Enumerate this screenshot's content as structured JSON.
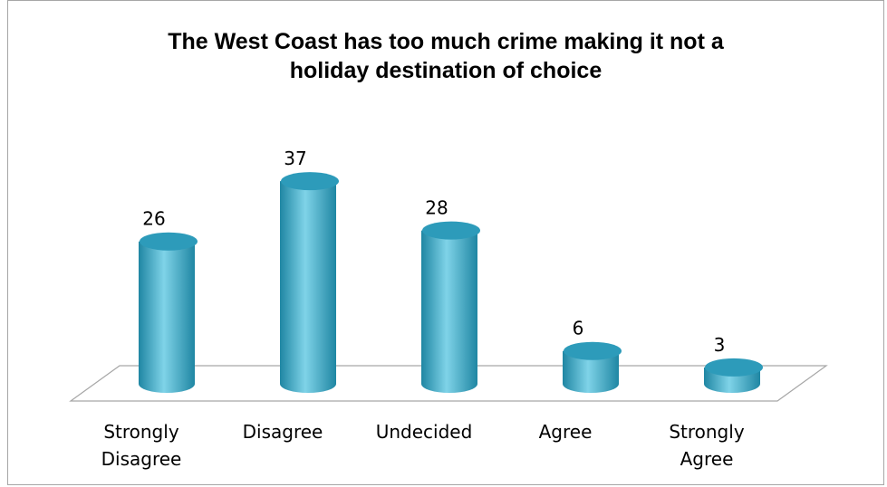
{
  "chart_data": {
    "type": "bar",
    "title_lines": [
      "The West Coast has too much crime making it not a",
      "holiday destination of choice"
    ],
    "categories": [
      [
        "Strongly",
        "Disagree"
      ],
      [
        "Disagree"
      ],
      [
        "Undecided"
      ],
      [
        "Agree"
      ],
      [
        "Strongly",
        "Agree"
      ]
    ],
    "values": [
      26,
      37,
      28,
      6,
      3
    ],
    "ylim": [
      0,
      40
    ],
    "bar_shape": "3d-cylinder",
    "grid": false,
    "legend": "none",
    "colors": {
      "bar_front": "#4bb8d3",
      "bar_light": "#7fd3e8",
      "bar_dark": "#1f86a3",
      "bar_top": "#2d9bba",
      "floor_stroke": "#a6a6a6"
    }
  }
}
